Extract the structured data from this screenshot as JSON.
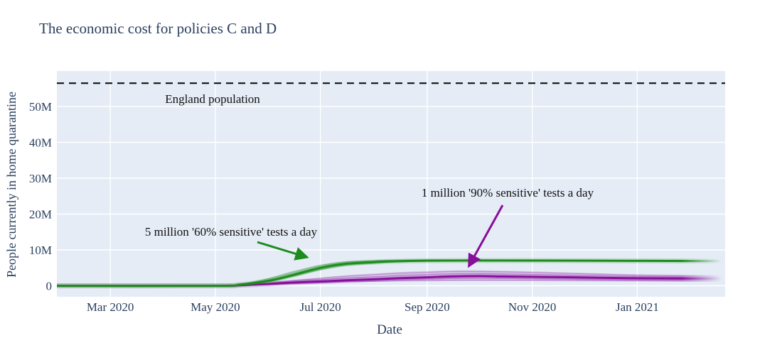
{
  "chart_data": {
    "type": "line",
    "title": "The economic cost for policies C and D",
    "xlabel": "Date",
    "ylabel": "People currently in home quarantine",
    "background_color": "#e5ecf6",
    "grid_color": "#ffffff",
    "text_color": "#2a3f5f",
    "annotation_text_color": "#111111",
    "grid": true,
    "legend_position": "none",
    "x_range_dates": [
      "2020-01-30",
      "2021-02-21"
    ],
    "ylim_millions": [
      -3.1,
      59.9
    ],
    "x_ticks": {
      "labels": [
        "Mar 2020",
        "May 2020",
        "Jul 2020",
        "Sep 2020",
        "Nov 2020",
        "Jan 2021"
      ],
      "dates": [
        "2020-03-01",
        "2020-05-01",
        "2020-07-01",
        "2020-09-01",
        "2020-11-01",
        "2021-01-01"
      ]
    },
    "y_ticks": {
      "labels": [
        "0",
        "10M",
        "20M",
        "30M",
        "40M",
        "50M"
      ],
      "values_millions": [
        0,
        10,
        20,
        30,
        40,
        50
      ]
    },
    "reference_line": {
      "label": "England population",
      "value_millions": 56.5,
      "style": "dashed",
      "color": "#111111"
    },
    "series": [
      {
        "name": "1 million '90% sensitive' tests a day",
        "policy": "D",
        "color": "#870f9b",
        "x_dates": [
          "2020-01-30",
          "2020-05-01",
          "2020-05-15",
          "2020-06-01",
          "2020-06-15",
          "2020-07-01",
          "2020-07-15",
          "2020-08-01",
          "2020-08-15",
          "2020-09-01",
          "2020-09-15",
          "2020-10-01",
          "2020-10-15",
          "2020-11-01",
          "2020-12-01",
          "2021-01-01",
          "2021-02-21"
        ],
        "values_millions": [
          0,
          0,
          0.15,
          0.5,
          0.9,
          1.2,
          1.5,
          1.8,
          2.1,
          2.35,
          2.6,
          2.7,
          2.6,
          2.5,
          2.3,
          2.1,
          2.0
        ],
        "band_upper_millions": [
          0,
          0,
          0.3,
          0.9,
          1.6,
          2.3,
          2.9,
          3.4,
          3.8,
          4.1,
          4.3,
          4.3,
          4.2,
          4.0,
          3.6,
          3.2,
          2.9
        ],
        "band_lower_millions": [
          0,
          0,
          0.05,
          0.25,
          0.5,
          0.7,
          0.95,
          1.1,
          1.2,
          1.25,
          1.3,
          1.3,
          1.3,
          1.3,
          1.25,
          1.2,
          1.1
        ]
      },
      {
        "name": "5 million '60% sensitive' tests a day",
        "policy": "C",
        "color": "#1d8c1d",
        "x_dates": [
          "2020-01-30",
          "2020-05-01",
          "2020-05-15",
          "2020-06-01",
          "2020-06-15",
          "2020-07-01",
          "2020-07-15",
          "2020-08-01",
          "2020-08-15",
          "2020-09-01",
          "2020-10-01",
          "2020-12-01",
          "2021-02-21"
        ],
        "values_millions": [
          0,
          0,
          0.3,
          1.4,
          3.0,
          5.0,
          6.1,
          6.6,
          6.85,
          7.0,
          7.05,
          7.0,
          6.9
        ],
        "band_upper_millions": [
          0,
          0,
          0.5,
          2.2,
          4.1,
          5.9,
          6.8,
          7.15,
          7.25,
          7.3,
          7.25,
          7.1,
          7.0
        ],
        "band_lower_millions": [
          0,
          0,
          0.15,
          1.0,
          2.5,
          4.3,
          5.5,
          6.2,
          6.6,
          6.8,
          6.9,
          6.9,
          6.8
        ]
      }
    ],
    "annotations": [
      {
        "text": "5 million '60% sensitive' tests a day",
        "color": "#1d8c1d",
        "series": "C"
      },
      {
        "text": "1 million '90% sensitive' tests a day",
        "color": "#870f9b",
        "series": "D"
      }
    ]
  }
}
